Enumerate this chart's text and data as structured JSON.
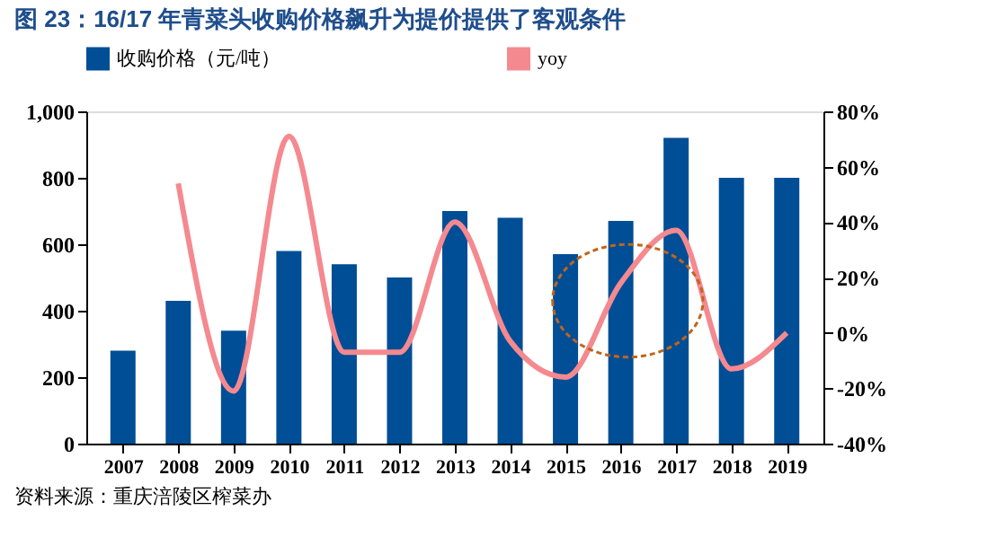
{
  "chart_data": {
    "type": "bar",
    "title": "图 23：16/17 年青菜头收购价格飙升为提价提供了客观条件",
    "categories": [
      "2007",
      "2008",
      "2009",
      "2010",
      "2011",
      "2012",
      "2013",
      "2014",
      "2015",
      "2016",
      "2017",
      "2018",
      "2019"
    ],
    "series": [
      {
        "name": "收购价格（元/吨）",
        "color": "#004e96",
        "type": "bar",
        "values": [
          280,
          430,
          340,
          580,
          540,
          500,
          700,
          680,
          570,
          670,
          920,
          800,
          800
        ]
      },
      {
        "name": "yoy",
        "color": "#f4898f",
        "type": "line",
        "axis": "y2",
        "values": [
          null,
          54,
          -21,
          71,
          -7,
          -7,
          40,
          -3,
          -16,
          18,
          37,
          -13,
          0
        ]
      }
    ],
    "ylim": [
      0,
      1000
    ],
    "yticks": [
      0,
      200,
      400,
      600,
      800,
      {
        "value": 1000,
        "label": "1,000"
      }
    ],
    "y2lim": [
      -40,
      80
    ],
    "y2ticks": [
      {
        "value": -40,
        "label": "-40%"
      },
      {
        "value": -20,
        "label": "-20%"
      },
      {
        "value": 0,
        "label": "0%"
      },
      {
        "value": 20,
        "label": "20%"
      },
      {
        "value": 40,
        "label": "40%"
      },
      {
        "value": 60,
        "label": "60%"
      },
      {
        "value": 80,
        "label": "80%"
      }
    ],
    "grid": false,
    "legend": "top",
    "marker": "none",
    "line_style": "solid",
    "annotations": [
      "资料来源：重庆涪陵区榨菜办"
    ]
  }
}
